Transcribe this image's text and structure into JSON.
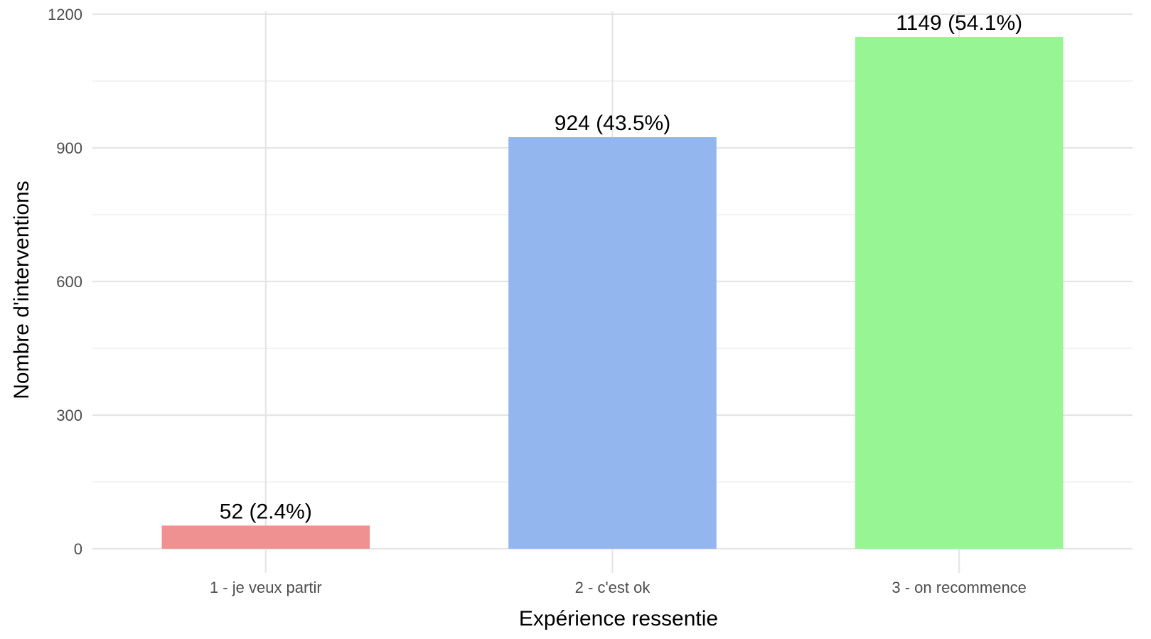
{
  "chart_data": {
    "type": "bar",
    "categories": [
      "1 - je veux partir",
      "2 - c'est ok",
      "3 - on recommence"
    ],
    "values": [
      52,
      924,
      1149
    ],
    "data_labels": [
      "52 (2.4%)",
      "924 (43.5%)",
      "1149 (54.1%)"
    ],
    "colors": [
      "#f09191",
      "#94b6ee",
      "#98f593"
    ],
    "title": "",
    "xlabel": "Expérience ressentie",
    "ylabel": "Nombre d'interventions",
    "ylim": [
      0,
      1200
    ],
    "y_ticks": [
      0,
      300,
      600,
      900,
      1200
    ],
    "y_tick_labels": [
      "0",
      "300",
      "600",
      "900",
      "1200"
    ],
    "grid": true,
    "legend": "none"
  }
}
